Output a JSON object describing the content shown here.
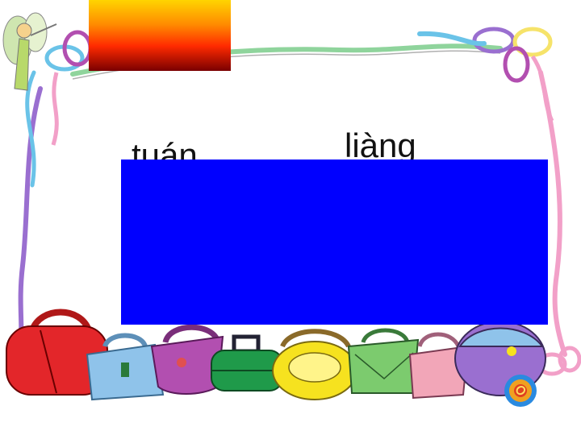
{
  "slide": {
    "pinyin": [
      "tuán",
      "liàng"
    ]
  },
  "colors": {
    "background": "#ffffff",
    "cover_box": "#0000ff",
    "title_gradient": [
      "#ffd400",
      "#ff8a00",
      "#ff2a00",
      "#7a0000"
    ],
    "ribbon_colors": [
      "#b24fb0",
      "#6ac3e8",
      "#f2a0c8",
      "#9a6fd0",
      "#f6e36a",
      "#8fd49c"
    ],
    "bag_colors": [
      "#e3262a",
      "#8fc3ea",
      "#b24fb0",
      "#1f9a4a",
      "#f6e21f",
      "#7ccb6e",
      "#f2a6b8",
      "#9a6fd0"
    ]
  },
  "icons": [
    "fairy-icon",
    "ribbon-bow-icon",
    "sun-icon",
    "handbag-icon"
  ]
}
